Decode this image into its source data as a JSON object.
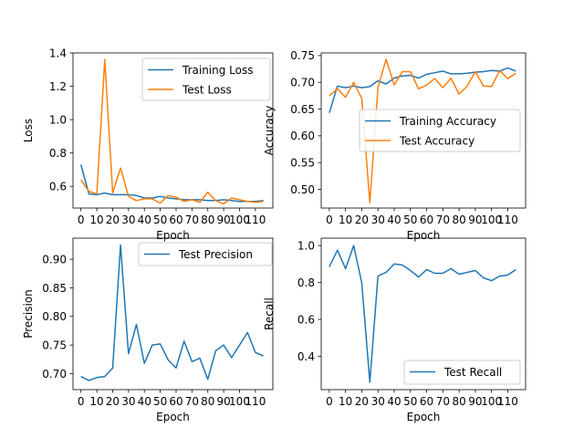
{
  "colors": {
    "series_1": "#1f77b4",
    "series_2": "#ff7f0e"
  },
  "chart_data": [
    {
      "type": "line",
      "xlabel": "Epoch",
      "ylabel": "Loss",
      "xlim": [
        -5,
        121
      ],
      "ylim": [
        0.47,
        1.4
      ],
      "xticks": [
        0,
        10,
        20,
        30,
        40,
        50,
        60,
        70,
        80,
        90,
        100,
        110
      ],
      "xtick_labels": [
        "0",
        "10",
        "20",
        "30",
        "40",
        "50",
        "60",
        "70",
        "80",
        "90",
        "100",
        "110"
      ],
      "yticks": [
        0.6,
        0.8,
        1.0,
        1.2,
        1.4
      ],
      "ytick_labels": [
        "0.6",
        "0.8",
        "1.0",
        "1.2",
        "1.4"
      ],
      "legend": "top-right",
      "grid": false,
      "x": [
        0,
        5,
        10,
        15,
        20,
        25,
        30,
        35,
        40,
        45,
        50,
        55,
        60,
        65,
        70,
        75,
        80,
        85,
        90,
        95,
        100,
        105,
        110,
        115
      ],
      "series": [
        {
          "name": "Training Loss",
          "color": "#1f77b4",
          "values": [
            0.73,
            0.555,
            0.55,
            0.56,
            0.55,
            0.55,
            0.55,
            0.545,
            0.53,
            0.53,
            0.54,
            0.53,
            0.525,
            0.52,
            0.52,
            0.52,
            0.515,
            0.515,
            0.52,
            0.515,
            0.51,
            0.51,
            0.51,
            0.515
          ]
        },
        {
          "name": "Test Loss",
          "color": "#ff7f0e",
          "values": [
            0.64,
            0.57,
            0.555,
            1.36,
            0.56,
            0.71,
            0.54,
            0.515,
            0.525,
            0.525,
            0.5,
            0.545,
            0.535,
            0.51,
            0.52,
            0.505,
            0.565,
            0.515,
            0.495,
            0.53,
            0.52,
            0.51,
            0.505,
            0.51
          ]
        }
      ]
    },
    {
      "type": "line",
      "xlabel": "Epoch",
      "ylabel": "Accuracy",
      "xlim": [
        -5,
        121
      ],
      "ylim": [
        0.465,
        0.755
      ],
      "xticks": [
        0,
        10,
        20,
        30,
        40,
        50,
        60,
        70,
        80,
        90,
        100,
        110
      ],
      "xtick_labels": [
        "0",
        "10",
        "20",
        "30",
        "40",
        "50",
        "60",
        "70",
        "80",
        "90",
        "100",
        "110"
      ],
      "yticks": [
        0.5,
        0.55,
        0.6,
        0.65,
        0.7,
        0.75
      ],
      "ytick_labels": [
        "0.50",
        "0.55",
        "0.60",
        "0.65",
        "0.70",
        "0.75"
      ],
      "legend": "center-right",
      "grid": false,
      "x": [
        0,
        5,
        10,
        15,
        20,
        25,
        30,
        35,
        40,
        45,
        50,
        55,
        60,
        65,
        70,
        75,
        80,
        85,
        90,
        95,
        100,
        105,
        110,
        115
      ],
      "series": [
        {
          "name": "Training Accuracy",
          "color": "#1f77b4",
          "values": [
            0.643,
            0.693,
            0.69,
            0.693,
            0.69,
            0.692,
            0.703,
            0.697,
            0.708,
            0.712,
            0.713,
            0.708,
            0.715,
            0.718,
            0.721,
            0.716,
            0.716,
            0.717,
            0.719,
            0.72,
            0.722,
            0.721,
            0.727,
            0.721
          ]
        },
        {
          "name": "Test Accuracy",
          "color": "#ff7f0e",
          "values": [
            0.675,
            0.688,
            0.672,
            0.7,
            0.67,
            0.475,
            0.69,
            0.743,
            0.695,
            0.72,
            0.72,
            0.688,
            0.695,
            0.707,
            0.69,
            0.708,
            0.678,
            0.693,
            0.72,
            0.693,
            0.692,
            0.722,
            0.707,
            0.717
          ]
        }
      ]
    },
    {
      "type": "line",
      "xlabel": "Epoch",
      "ylabel": "Precision",
      "xlim": [
        -5,
        121
      ],
      "ylim": [
        0.672,
        0.937
      ],
      "xticks": [
        0,
        10,
        20,
        30,
        40,
        50,
        60,
        70,
        80,
        90,
        100,
        110
      ],
      "xtick_labels": [
        "0",
        "10",
        "20",
        "30",
        "40",
        "50",
        "60",
        "70",
        "80",
        "90",
        "100",
        "110"
      ],
      "yticks": [
        0.7,
        0.75,
        0.8,
        0.85,
        0.9
      ],
      "ytick_labels": [
        "0.70",
        "0.75",
        "0.80",
        "0.85",
        "0.90"
      ],
      "legend": "top-right",
      "grid": false,
      "x": [
        0,
        5,
        10,
        15,
        20,
        25,
        30,
        35,
        40,
        45,
        50,
        55,
        60,
        65,
        70,
        75,
        80,
        85,
        90,
        95,
        100,
        105,
        110,
        115
      ],
      "series": [
        {
          "name": "Test Precision",
          "color": "#1f77b4",
          "values": [
            0.695,
            0.688,
            0.693,
            0.695,
            0.71,
            0.925,
            0.735,
            0.786,
            0.718,
            0.75,
            0.752,
            0.724,
            0.71,
            0.757,
            0.721,
            0.727,
            0.69,
            0.74,
            0.75,
            0.728,
            0.75,
            0.772,
            0.737,
            0.731
          ]
        }
      ]
    },
    {
      "type": "line",
      "xlabel": "Epoch",
      "ylabel": "Recall",
      "xlim": [
        -5,
        121
      ],
      "ylim": [
        0.22,
        1.04
      ],
      "xticks": [
        0,
        10,
        20,
        30,
        40,
        50,
        60,
        70,
        80,
        90,
        100,
        110
      ],
      "xtick_labels": [
        "0",
        "10",
        "20",
        "30",
        "40",
        "50",
        "60",
        "70",
        "80",
        "90",
        "100",
        "110"
      ],
      "yticks": [
        0.4,
        0.6,
        0.8,
        1.0
      ],
      "ytick_labels": [
        "0.4",
        "0.6",
        "0.8",
        "1.0"
      ],
      "legend": "bottom-right",
      "grid": false,
      "x": [
        0,
        5,
        10,
        15,
        20,
        25,
        30,
        35,
        40,
        45,
        50,
        55,
        60,
        65,
        70,
        75,
        80,
        85,
        90,
        95,
        100,
        105,
        110,
        115
      ],
      "series": [
        {
          "name": "Test Recall",
          "color": "#1f77b4",
          "values": [
            0.885,
            0.975,
            0.875,
            1.0,
            0.8,
            0.26,
            0.835,
            0.855,
            0.9,
            0.895,
            0.865,
            0.83,
            0.87,
            0.85,
            0.85,
            0.875,
            0.845,
            0.855,
            0.865,
            0.825,
            0.81,
            0.835,
            0.84,
            0.87
          ]
        }
      ]
    }
  ]
}
